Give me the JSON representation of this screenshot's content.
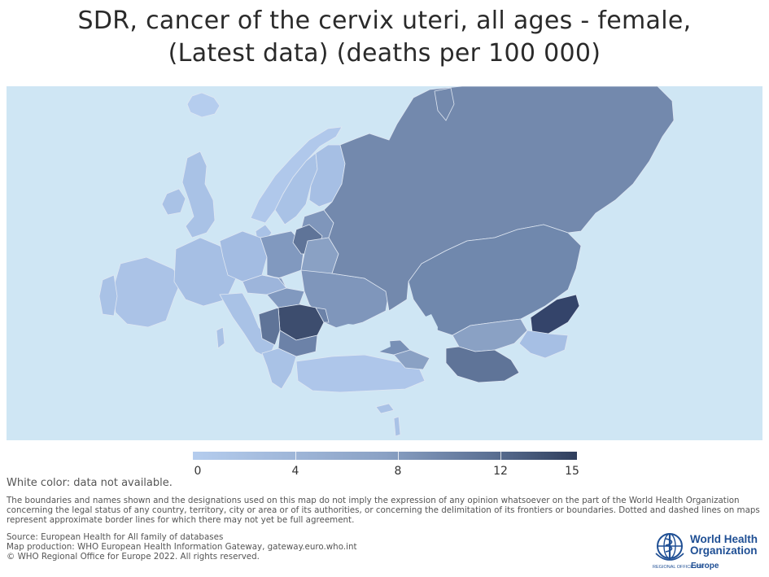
{
  "title": {
    "line1": "SDR, cancer of the cervix uteri, all ages - female,",
    "line2": "(Latest data) (deaths per 100 000)"
  },
  "legend": {
    "ticks": [
      "0",
      "4",
      "8",
      "12",
      "15"
    ],
    "min": 0,
    "max": 15,
    "colors": [
      "#b5cdee",
      "#8aa1c4",
      "#5a6f92",
      "#2f3e5c"
    ]
  },
  "na_note": "White color: data not available.",
  "disclaimer": "The boundaries and names shown and the designations used on this map do not imply the expression of any opinion whatsoever on the part of the World Health Organization concerning the legal status of any country, territory, city or area or of its authorities, or concerning the delimitation of its frontiers or boundaries. Dotted and dashed lines on maps represent approximate border lines for which there may not yet be full agreement.",
  "source": {
    "line1": "Source: European Health for All family of databases",
    "line2": "Map production: WHO European Health Information Gateway, gateway.euro.who.int",
    "line3": "© WHO Regional Office for Europe 2022. All rights reserved."
  },
  "who_logo": {
    "line1": "World Health",
    "line2": "Organization",
    "regional": "REGIONAL OFFICE FOR",
    "region": "Europe",
    "icon": "who-emblem-icon"
  },
  "map": {
    "background_color": "#cfe6f4",
    "border_color": "#dfe7f2"
  }
}
